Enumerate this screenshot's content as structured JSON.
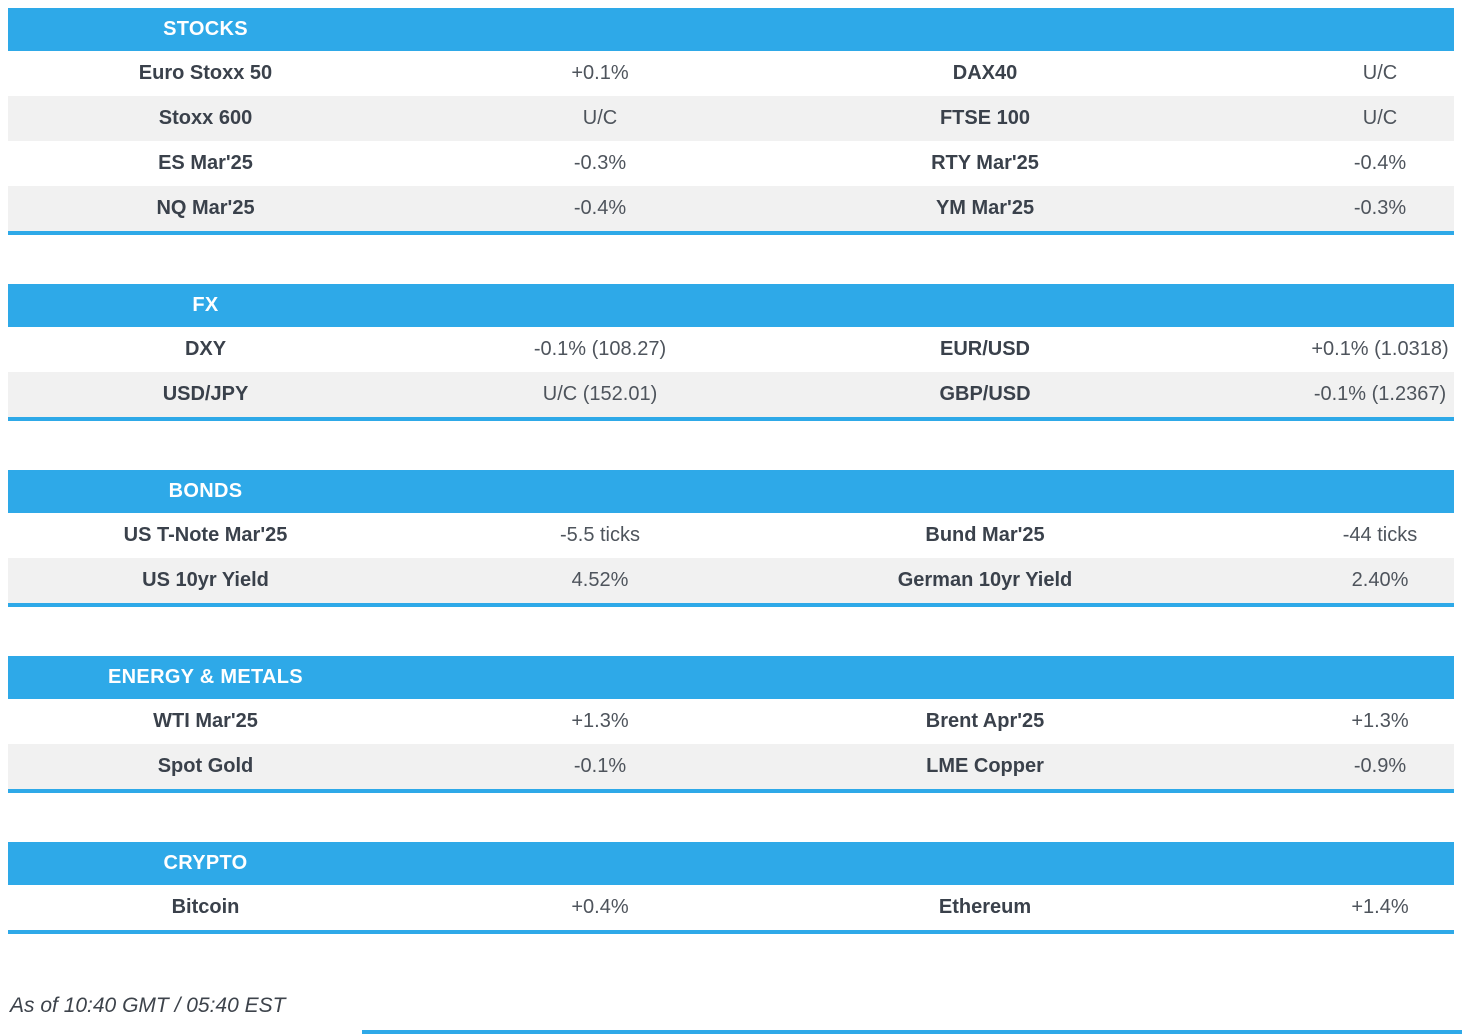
{
  "accent_color": "#2ea9e8",
  "stripe_color": "#f1f1f1",
  "sections": [
    {
      "title": "STOCKS",
      "rows": [
        {
          "label": "Euro Stoxx 50",
          "value": "+0.1%",
          "label2": "DAX40",
          "value2": "U/C"
        },
        {
          "label": "Stoxx 600",
          "value": "U/C",
          "label2": "FTSE 100",
          "value2": "U/C"
        },
        {
          "label": "ES Mar'25",
          "value": "-0.3%",
          "label2": "RTY Mar'25",
          "value2": "-0.4%"
        },
        {
          "label": "NQ Mar'25",
          "value": "-0.4%",
          "label2": "YM Mar'25",
          "value2": "-0.3%"
        }
      ]
    },
    {
      "title": "FX",
      "rows": [
        {
          "label": "DXY",
          "value": "-0.1% (108.27)",
          "label2": "EUR/USD",
          "value2": "+0.1% (1.0318)"
        },
        {
          "label": "USD/JPY",
          "value": "U/C (152.01)",
          "label2": "GBP/USD",
          "value2": "-0.1% (1.2367)"
        }
      ]
    },
    {
      "title": "BONDS",
      "rows": [
        {
          "label": "US T-Note Mar'25",
          "value": "-5.5 ticks",
          "label2": "Bund Mar'25",
          "value2": "-44 ticks"
        },
        {
          "label": "US 10yr Yield",
          "value": "4.52%",
          "label2": "German 10yr Yield",
          "value2": "2.40%"
        }
      ]
    },
    {
      "title": "ENERGY & METALS",
      "rows": [
        {
          "label": "WTI Mar'25",
          "value": "+1.3%",
          "label2": "Brent Apr'25",
          "value2": "+1.3%"
        },
        {
          "label": "Spot Gold",
          "value": "-0.1%",
          "label2": "LME Copper",
          "value2": "-0.9%"
        }
      ]
    },
    {
      "title": "CRYPTO",
      "rows": [
        {
          "label": "Bitcoin",
          "value": "+0.4%",
          "label2": "Ethereum",
          "value2": "+1.4%"
        }
      ]
    }
  ],
  "footer": {
    "as_of": "As of 10:40 GMT / 05:40 EST"
  }
}
